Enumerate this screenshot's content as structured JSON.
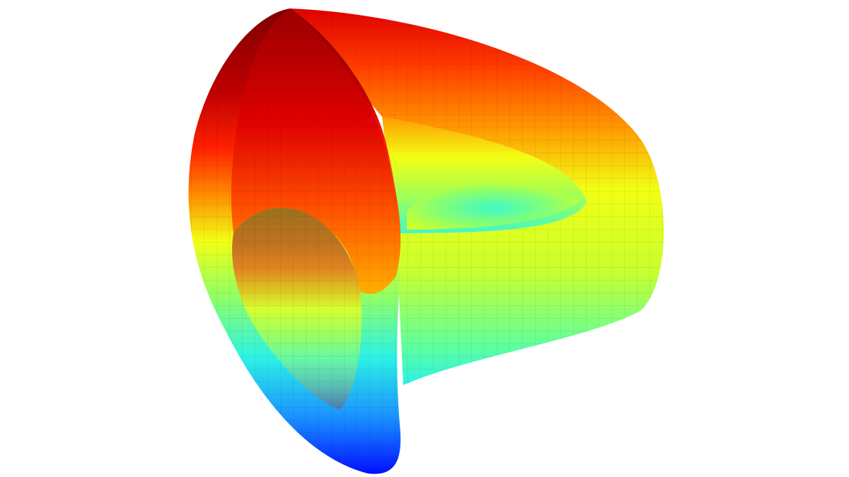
{
  "image": {
    "subject": "3d-torus-surface-logo",
    "colormap": "jet",
    "colors": {
      "background": "#ffffff",
      "dark_red": "#7f0000",
      "red": "#ff1a00",
      "orange": "#ff8c00",
      "yellow": "#f2ff14",
      "green": "#7dff7a",
      "cyan": "#2cf2e6",
      "blue": "#0022ff"
    }
  }
}
